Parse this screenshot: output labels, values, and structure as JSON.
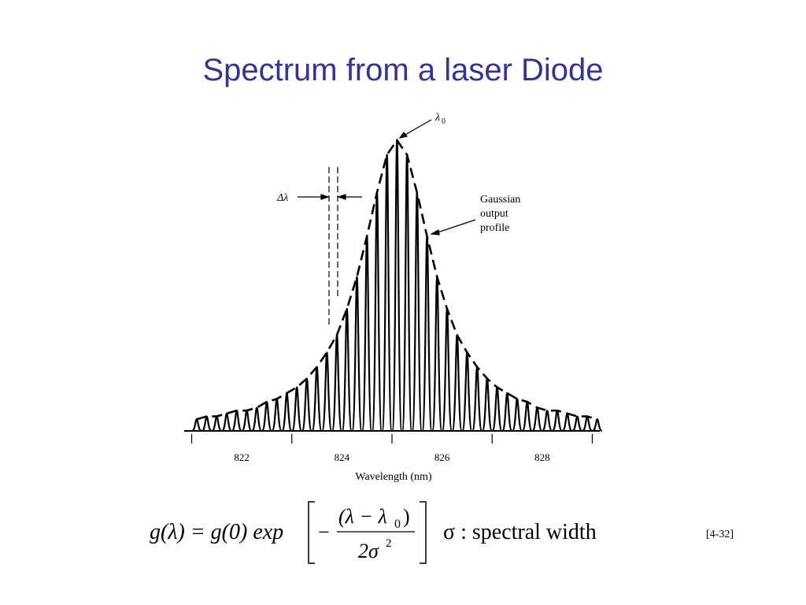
{
  "title": "Spectrum from a laser Diode",
  "chart_data": {
    "type": "spectrum",
    "x_label": "Wavelength (nm)",
    "x": [
      821.1,
      821.3,
      821.5,
      821.7,
      821.9,
      822.1,
      822.3,
      822.5,
      822.7,
      822.9,
      823.1,
      823.3,
      823.5,
      823.7,
      823.9,
      824.1,
      824.3,
      824.5,
      824.7,
      824.9,
      825.1,
      825.3,
      825.5,
      825.7,
      825.9,
      826.1,
      826.3,
      826.5,
      826.7,
      826.9,
      827.1,
      827.3,
      827.5,
      827.7,
      827.9,
      828.1,
      828.3,
      828.5,
      828.7,
      828.9,
      829.1
    ],
    "values": [
      0.04,
      0.05,
      0.05,
      0.06,
      0.07,
      0.07,
      0.08,
      0.1,
      0.11,
      0.13,
      0.15,
      0.18,
      0.22,
      0.27,
      0.33,
      0.42,
      0.53,
      0.67,
      0.82,
      0.95,
      1.0,
      0.95,
      0.82,
      0.67,
      0.53,
      0.42,
      0.33,
      0.27,
      0.22,
      0.18,
      0.15,
      0.13,
      0.11,
      0.1,
      0.08,
      0.07,
      0.07,
      0.06,
      0.05,
      0.05,
      0.04
    ],
    "color": "#000000",
    "xlim": [
      820.85,
      829.15
    ],
    "ylim": [
      0,
      1
    ],
    "xticks": [
      822,
      824,
      826,
      828
    ],
    "xminor_ticks": [
      821,
      823,
      825,
      827,
      829
    ],
    "annotations": {
      "peak": "λ",
      "peak_sub": "0",
      "spacing": "Δλ",
      "profile": [
        "Gaussian",
        "output",
        "profile"
      ]
    }
  },
  "formula": {
    "lhs": "g(λ) = g(0) exp",
    "minus": "−",
    "numerator": "(λ − λ",
    "numerator_sub": "0",
    "numerator_end": ")",
    "denominator": "2σ",
    "denominator_sup": "2",
    "note": "σ : spectral width"
  },
  "reference": "[4-32]"
}
